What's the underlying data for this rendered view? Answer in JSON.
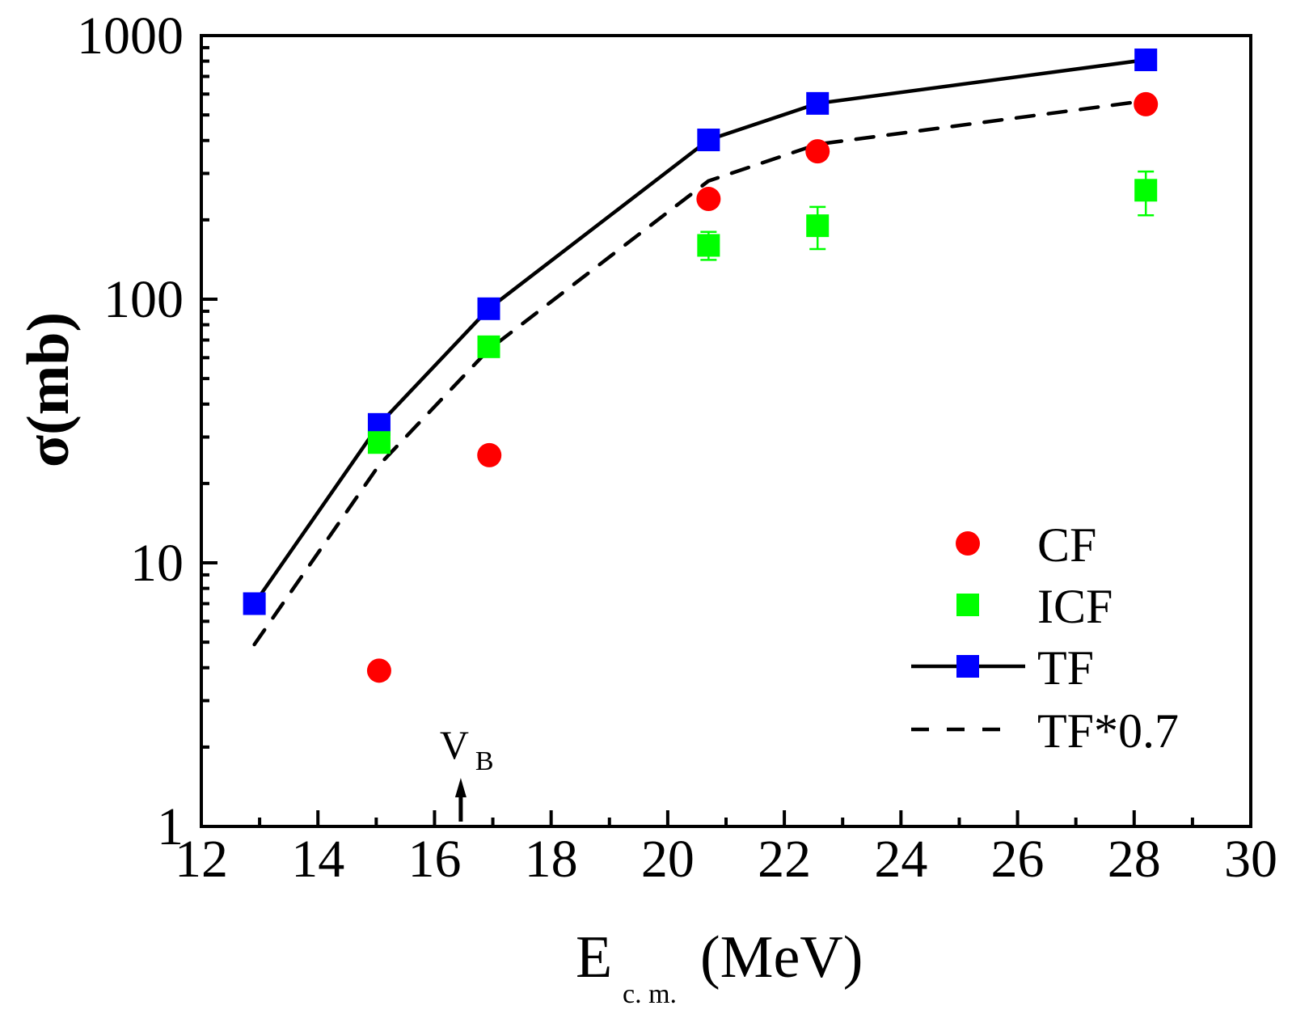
{
  "chart_data": {
    "type": "scatter",
    "title": "",
    "xlabel": "E",
    "xlabel_subscript": "c. m.",
    "xlabel_unit": "(MeV)",
    "ylabel": "σ(mb)",
    "xlim": [
      12,
      30
    ],
    "ylim": [
      1,
      1000
    ],
    "yscale": "log",
    "grid": false,
    "x_ticks": [
      12,
      14,
      16,
      18,
      20,
      22,
      24,
      26,
      28,
      30
    ],
    "x_tick_labels": [
      "12",
      "14",
      "16",
      "18",
      "20",
      "22",
      "24",
      "26",
      "28",
      "30"
    ],
    "y_ticks": [
      1,
      10,
      100,
      1000
    ],
    "y_tick_labels": [
      "1",
      "10",
      "100",
      "1000"
    ],
    "legend_position": "bottom-right",
    "series": [
      {
        "name": "CF",
        "kind": "markers",
        "marker": "circle",
        "color": "#ff0000",
        "x": [
          15.05,
          16.94,
          20.7,
          22.57,
          28.2
        ],
        "y": [
          3.9,
          25.6,
          240,
          364,
          549
        ]
      },
      {
        "name": "ICF",
        "kind": "markers",
        "marker": "square",
        "color": "#00ff00",
        "x": [
          15.05,
          16.93,
          20.7,
          22.57,
          28.2
        ],
        "y": [
          28.6,
          66,
          160,
          190,
          259
        ],
        "err_low": [
          null,
          null,
          141,
          155,
          208
        ],
        "err_high": [
          null,
          null,
          180,
          224,
          305
        ]
      },
      {
        "name": "TF",
        "kind": "line+markers",
        "marker": "square",
        "color": "#0000ff",
        "line_color": "#000000",
        "line_style": "solid",
        "x": [
          12.91,
          15.05,
          16.93,
          20.7,
          22.57,
          28.2
        ],
        "y": [
          7.0,
          33.5,
          92,
          402,
          553,
          809
        ]
      },
      {
        "name": "TF*0.7",
        "kind": "line",
        "line_color": "#000000",
        "line_style": "dashed",
        "x": [
          12.91,
          15.05,
          16.93,
          20.7,
          22.57,
          28.2
        ],
        "y": [
          4.9,
          23.5,
          64.4,
          281,
          387,
          566
        ]
      }
    ],
    "annotations": [
      {
        "text": "V",
        "subscript": "B",
        "x": 16.45,
        "arrow": "up",
        "arrow_from_y": 1.0,
        "arrow_to_y": 1.45
      }
    ]
  }
}
